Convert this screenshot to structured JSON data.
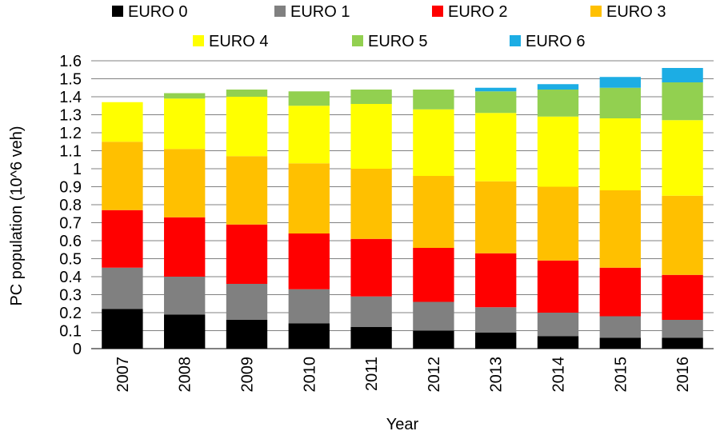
{
  "chart_data": {
    "type": "bar",
    "stacked": true,
    "categories": [
      "2007",
      "2008",
      "2009",
      "2010",
      "2011",
      "2012",
      "2013",
      "2014",
      "2015",
      "2016"
    ],
    "series": [
      {
        "name": "EURO 0",
        "color": "#000000",
        "values": [
          0.22,
          0.19,
          0.16,
          0.14,
          0.12,
          0.1,
          0.09,
          0.07,
          0.06,
          0.06
        ]
      },
      {
        "name": "EURO 1",
        "color": "#808080",
        "values": [
          0.23,
          0.21,
          0.2,
          0.19,
          0.17,
          0.16,
          0.14,
          0.13,
          0.12,
          0.1
        ]
      },
      {
        "name": "EURO 2",
        "color": "#ff0000",
        "values": [
          0.32,
          0.33,
          0.33,
          0.31,
          0.32,
          0.3,
          0.3,
          0.29,
          0.27,
          0.25
        ]
      },
      {
        "name": "EURO 3",
        "color": "#ffc000",
        "values": [
          0.38,
          0.38,
          0.38,
          0.39,
          0.39,
          0.4,
          0.4,
          0.41,
          0.43,
          0.44
        ]
      },
      {
        "name": "EURO 4",
        "color": "#ffff00",
        "values": [
          0.22,
          0.28,
          0.33,
          0.32,
          0.36,
          0.37,
          0.38,
          0.39,
          0.4,
          0.42
        ]
      },
      {
        "name": "EURO 5",
        "color": "#92d050",
        "values": [
          0.0,
          0.03,
          0.04,
          0.08,
          0.08,
          0.11,
          0.12,
          0.15,
          0.17,
          0.21
        ]
      },
      {
        "name": "EURO 6",
        "color": "#1cade4",
        "values": [
          0.0,
          0.0,
          0.0,
          0.0,
          0.0,
          0.0,
          0.02,
          0.03,
          0.06,
          0.08
        ]
      }
    ],
    "yticks": [
      "0",
      "0.1",
      "0.2",
      "0.3",
      "0.4",
      "0.5",
      "0.6",
      "0.7",
      "0.8",
      "0.9",
      "1",
      "1.1",
      "1.2",
      "1.3",
      "1.4",
      "1.5",
      "1.6"
    ],
    "ylim": [
      0,
      1.6
    ],
    "xlabel": "Year",
    "ylabel": "PC population (10^6 veh)",
    "grid": true,
    "legend_position": "top"
  }
}
